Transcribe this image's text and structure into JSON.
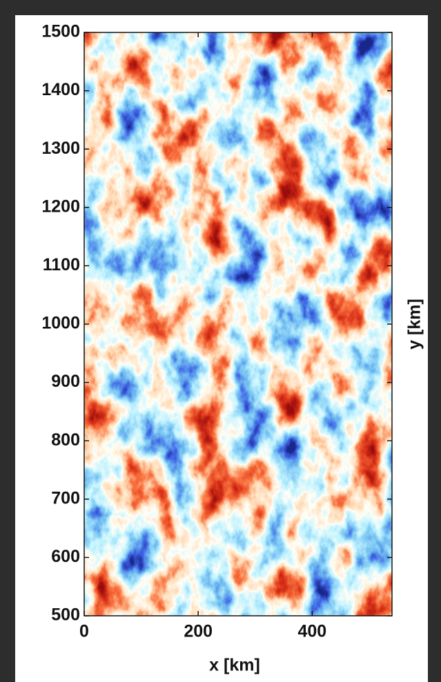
{
  "chart_data": {
    "type": "heatmap",
    "xlabel": "x [km]",
    "ylabel": "y [km]",
    "xlim": [
      0,
      540
    ],
    "ylim": [
      500,
      1500
    ],
    "xticks": [
      0,
      200,
      400
    ],
    "yticks": [
      500,
      600,
      700,
      800,
      900,
      1000,
      1100,
      1200,
      1300,
      1400,
      1500
    ]
  }
}
